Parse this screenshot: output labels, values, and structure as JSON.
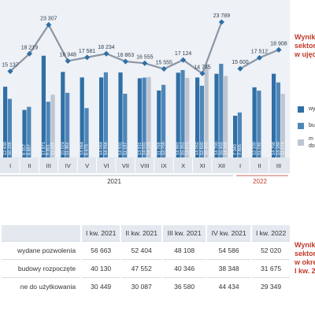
{
  "chart_data": {
    "type": "bar",
    "title": "",
    "months": [
      "I",
      "II",
      "III",
      "IV",
      "V",
      "VI",
      "VII",
      "VIII",
      "IX",
      "X",
      "XI",
      "XII",
      "I",
      "II",
      "III"
    ],
    "year_labels": [
      "2021",
      "2022"
    ],
    "series": [
      {
        "name": "wy",
        "color": "#2f6fa6",
        "values": [
          12430,
          8357,
          17871,
          15024,
          14064,
          14064,
          14931,
          13911,
          11768,
          14891,
          14052,
          14700,
          7340,
          12330,
          14708
        ]
      },
      {
        "name": "bu",
        "color": "#4f86b8",
        "values": [
          10296,
          8897,
          9801,
          11362,
          8678,
          14956,
          11197,
          14031,
          12758,
          15351,
          12602,
          16455,
          7905,
          11740,
          13180
        ]
      },
      {
        "name": "do",
        "color": "#bdc5d2",
        "values": [
          null,
          null,
          11028,
          null,
          null,
          null,
          null,
          14125,
          null,
          13975,
          16455,
          14300,
          null,
          null,
          11174
        ]
      }
    ],
    "line": {
      "values": [
        15137,
        18219,
        23307,
        16948,
        17581,
        18234,
        16863,
        16555,
        15555,
        17124,
        14745,
        23789,
        15600,
        17512,
        18908
      ],
      "labels": [
        "15 137",
        "18 219",
        "23 307",
        "16 948",
        "17 581",
        "18 234",
        "16 863",
        "16 555",
        "15 555",
        "17 124",
        "14 745",
        "23 789",
        "15 600",
        "17 512",
        "18 908"
      ]
    },
    "bar_labels": {
      "s0": [
        "12 430",
        "8 357",
        "17 871",
        "15 024",
        "14 064",
        "14 064",
        "14 931",
        "13 911",
        "11 768",
        "14 891",
        "14 052",
        "14 700",
        "7 340",
        "12 330",
        "14 708"
      ],
      "s1": [
        "10 296",
        "8 897",
        "9 801",
        "11 362",
        "8 678",
        "14 956",
        "11 197",
        "14 031",
        "12 758",
        "15 351",
        "12 602",
        "16 455",
        "7 905",
        "11 740",
        "13 180"
      ],
      "s2": [
        "",
        "",
        "11 028",
        "",
        "",
        "",
        "",
        "14 125",
        "",
        "13 975",
        "16 455",
        "14 300",
        "",
        "",
        "11 174"
      ]
    },
    "ylim": [
      0,
      26000
    ]
  },
  "side": {
    "title_lines": [
      "Wynik",
      "sektor",
      "w ujęc"
    ],
    "legend": [
      {
        "label": "wy",
        "color": "#2f6fa6"
      },
      {
        "label": "bu",
        "color": "#4f86b8"
      },
      {
        "label": "m",
        "label2": "do",
        "color": "#bdc5d2"
      }
    ],
    "title2_lines": [
      "Wynik",
      "sektor",
      "w okre",
      "I kw. 2"
    ]
  },
  "table": {
    "headers": [
      "",
      "I kw. 2021",
      "II kw. 2021",
      "III kw. 2021",
      "IV kw. 2021",
      "I kw. 2022"
    ],
    "rows": [
      {
        "label": "wydane pozwolenia",
        "values": [
          "56 663",
          "52 404",
          "48 108",
          "54 586",
          "52 020"
        ]
      },
      {
        "label": "budowy rozpoczęte",
        "values": [
          "40 130",
          "47 552",
          "40 346",
          "38 348",
          "31 675"
        ]
      },
      {
        "label": "ne do użytkowania",
        "values": [
          "30 449",
          "30 087",
          "36 580",
          "44 434",
          "29 349"
        ]
      }
    ]
  }
}
